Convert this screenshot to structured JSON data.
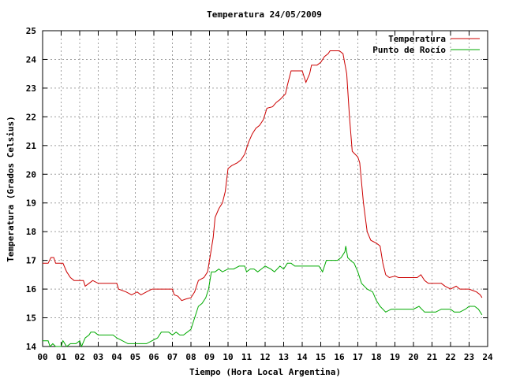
{
  "chart_data": {
    "type": "line",
    "title": "Temperatura 24/05/2009",
    "xlabel": "Tiempo (Hora Local Argentina)",
    "ylabel": "Temperatura (Grados Celsius)",
    "xlim": [
      0,
      24
    ],
    "ylim": [
      14,
      25
    ],
    "x_ticks": [
      "00",
      "01",
      "02",
      "03",
      "04",
      "05",
      "06",
      "07",
      "08",
      "09",
      "10",
      "11",
      "12",
      "13",
      "14",
      "15",
      "16",
      "17",
      "18",
      "19",
      "20",
      "21",
      "22",
      "23",
      "24"
    ],
    "y_ticks": [
      "14",
      "15",
      "16",
      "17",
      "18",
      "19",
      "20",
      "21",
      "22",
      "23",
      "24",
      "25"
    ],
    "grid": true,
    "legend_position": "top-right",
    "series": [
      {
        "name": "Temperatura",
        "color": "#cc0000",
        "points": [
          [
            0.0,
            16.9
          ],
          [
            0.3,
            16.9
          ],
          [
            0.45,
            17.1
          ],
          [
            0.6,
            17.1
          ],
          [
            0.7,
            16.9
          ],
          [
            1.1,
            16.9
          ],
          [
            1.3,
            16.6
          ],
          [
            1.5,
            16.4
          ],
          [
            1.7,
            16.3
          ],
          [
            2.2,
            16.3
          ],
          [
            2.3,
            16.1
          ],
          [
            2.5,
            16.2
          ],
          [
            2.7,
            16.3
          ],
          [
            3.0,
            16.2
          ],
          [
            3.3,
            16.2
          ],
          [
            3.6,
            16.2
          ],
          [
            4.0,
            16.2
          ],
          [
            4.1,
            16.0
          ],
          [
            4.5,
            15.9
          ],
          [
            4.8,
            15.8
          ],
          [
            5.1,
            15.9
          ],
          [
            5.3,
            15.8
          ],
          [
            5.6,
            15.9
          ],
          [
            5.9,
            16.0
          ],
          [
            6.2,
            16.0
          ],
          [
            6.6,
            16.0
          ],
          [
            7.0,
            16.0
          ],
          [
            7.1,
            15.8
          ],
          [
            7.3,
            15.75
          ],
          [
            7.5,
            15.6
          ],
          [
            7.7,
            15.65
          ],
          [
            8.0,
            15.7
          ],
          [
            8.2,
            15.9
          ],
          [
            8.4,
            16.3
          ],
          [
            8.7,
            16.4
          ],
          [
            8.9,
            16.6
          ],
          [
            9.0,
            17.0
          ],
          [
            9.2,
            17.8
          ],
          [
            9.3,
            18.5
          ],
          [
            9.5,
            18.8
          ],
          [
            9.7,
            19.0
          ],
          [
            9.85,
            19.4
          ],
          [
            10.0,
            20.2
          ],
          [
            10.2,
            20.3
          ],
          [
            10.5,
            20.4
          ],
          [
            10.7,
            20.5
          ],
          [
            10.9,
            20.7
          ],
          [
            11.1,
            21.1
          ],
          [
            11.3,
            21.4
          ],
          [
            11.5,
            21.6
          ],
          [
            11.7,
            21.7
          ],
          [
            11.9,
            21.9
          ],
          [
            12.1,
            22.3
          ],
          [
            12.4,
            22.35
          ],
          [
            12.6,
            22.5
          ],
          [
            12.8,
            22.6
          ],
          [
            13.1,
            22.8
          ],
          [
            13.2,
            23.1
          ],
          [
            13.4,
            23.6
          ],
          [
            13.7,
            23.6
          ],
          [
            14.0,
            23.6
          ],
          [
            14.2,
            23.2
          ],
          [
            14.4,
            23.5
          ],
          [
            14.5,
            23.8
          ],
          [
            14.8,
            23.8
          ],
          [
            15.0,
            23.9
          ],
          [
            15.2,
            24.1
          ],
          [
            15.4,
            24.2
          ],
          [
            15.5,
            24.3
          ],
          [
            15.7,
            24.3
          ],
          [
            16.0,
            24.3
          ],
          [
            16.2,
            24.2
          ],
          [
            16.4,
            23.5
          ],
          [
            16.55,
            22.0
          ],
          [
            16.7,
            20.8
          ],
          [
            17.0,
            20.6
          ],
          [
            17.1,
            20.4
          ],
          [
            17.3,
            19.0
          ],
          [
            17.5,
            18.0
          ],
          [
            17.7,
            17.7
          ],
          [
            18.0,
            17.6
          ],
          [
            18.2,
            17.5
          ],
          [
            18.35,
            16.9
          ],
          [
            18.5,
            16.5
          ],
          [
            18.7,
            16.4
          ],
          [
            19.0,
            16.45
          ],
          [
            19.2,
            16.4
          ],
          [
            19.5,
            16.4
          ],
          [
            20.0,
            16.4
          ],
          [
            20.2,
            16.4
          ],
          [
            20.4,
            16.5
          ],
          [
            20.6,
            16.3
          ],
          [
            20.8,
            16.2
          ],
          [
            21.1,
            16.2
          ],
          [
            21.5,
            16.2
          ],
          [
            21.7,
            16.1
          ],
          [
            22.0,
            16.0
          ],
          [
            22.3,
            16.1
          ],
          [
            22.5,
            16.0
          ],
          [
            23.0,
            16.0
          ],
          [
            23.2,
            15.95
          ],
          [
            23.4,
            15.9
          ],
          [
            23.6,
            15.8
          ],
          [
            23.7,
            15.7
          ]
        ]
      },
      {
        "name": "Punto de Rocío",
        "color": "#00aa00",
        "points": [
          [
            0.0,
            14.2
          ],
          [
            0.3,
            14.2
          ],
          [
            0.4,
            14.0
          ],
          [
            0.55,
            14.1
          ],
          [
            0.7,
            14.0
          ],
          [
            1.0,
            14.0
          ],
          [
            1.1,
            14.2
          ],
          [
            1.3,
            14.0
          ],
          [
            1.5,
            14.1
          ],
          [
            1.8,
            14.1
          ],
          [
            2.0,
            14.2
          ],
          [
            2.1,
            14.0
          ],
          [
            2.3,
            14.3
          ],
          [
            2.5,
            14.4
          ],
          [
            2.6,
            14.5
          ],
          [
            2.8,
            14.5
          ],
          [
            3.0,
            14.4
          ],
          [
            3.3,
            14.4
          ],
          [
            3.5,
            14.4
          ],
          [
            3.8,
            14.4
          ],
          [
            4.0,
            14.3
          ],
          [
            4.3,
            14.2
          ],
          [
            4.6,
            14.1
          ],
          [
            5.0,
            14.1
          ],
          [
            5.3,
            14.1
          ],
          [
            5.6,
            14.1
          ],
          [
            5.9,
            14.2
          ],
          [
            6.2,
            14.3
          ],
          [
            6.4,
            14.5
          ],
          [
            6.8,
            14.5
          ],
          [
            7.0,
            14.4
          ],
          [
            7.2,
            14.5
          ],
          [
            7.4,
            14.4
          ],
          [
            7.6,
            14.4
          ],
          [
            7.8,
            14.5
          ],
          [
            8.0,
            14.6
          ],
          [
            8.2,
            15.0
          ],
          [
            8.4,
            15.4
          ],
          [
            8.6,
            15.5
          ],
          [
            8.8,
            15.7
          ],
          [
            8.95,
            16.0
          ],
          [
            9.1,
            16.6
          ],
          [
            9.3,
            16.6
          ],
          [
            9.5,
            16.7
          ],
          [
            9.7,
            16.6
          ],
          [
            10.0,
            16.7
          ],
          [
            10.3,
            16.7
          ],
          [
            10.6,
            16.8
          ],
          [
            10.9,
            16.8
          ],
          [
            11.0,
            16.6
          ],
          [
            11.2,
            16.7
          ],
          [
            11.4,
            16.7
          ],
          [
            11.6,
            16.6
          ],
          [
            11.8,
            16.7
          ],
          [
            12.0,
            16.8
          ],
          [
            12.3,
            16.7
          ],
          [
            12.5,
            16.6
          ],
          [
            12.8,
            16.8
          ],
          [
            13.0,
            16.7
          ],
          [
            13.2,
            16.9
          ],
          [
            13.4,
            16.9
          ],
          [
            13.6,
            16.8
          ],
          [
            13.8,
            16.8
          ],
          [
            14.0,
            16.8
          ],
          [
            14.3,
            16.8
          ],
          [
            14.6,
            16.8
          ],
          [
            14.9,
            16.8
          ],
          [
            15.1,
            16.6
          ],
          [
            15.3,
            17.0
          ],
          [
            15.6,
            17.0
          ],
          [
            15.9,
            17.0
          ],
          [
            16.1,
            17.1
          ],
          [
            16.3,
            17.3
          ],
          [
            16.35,
            17.5
          ],
          [
            16.45,
            17.1
          ],
          [
            16.6,
            17.0
          ],
          [
            16.8,
            16.9
          ],
          [
            17.0,
            16.6
          ],
          [
            17.2,
            16.2
          ],
          [
            17.5,
            16.0
          ],
          [
            17.8,
            15.9
          ],
          [
            18.0,
            15.6
          ],
          [
            18.2,
            15.4
          ],
          [
            18.5,
            15.2
          ],
          [
            18.8,
            15.3
          ],
          [
            19.0,
            15.3
          ],
          [
            19.3,
            15.3
          ],
          [
            19.6,
            15.3
          ],
          [
            20.0,
            15.3
          ],
          [
            20.3,
            15.4
          ],
          [
            20.6,
            15.2
          ],
          [
            20.9,
            15.2
          ],
          [
            21.2,
            15.2
          ],
          [
            21.5,
            15.3
          ],
          [
            21.8,
            15.3
          ],
          [
            22.0,
            15.3
          ],
          [
            22.2,
            15.2
          ],
          [
            22.5,
            15.2
          ],
          [
            22.8,
            15.3
          ],
          [
            23.0,
            15.4
          ],
          [
            23.3,
            15.4
          ],
          [
            23.5,
            15.3
          ],
          [
            23.7,
            15.1
          ]
        ]
      }
    ]
  }
}
